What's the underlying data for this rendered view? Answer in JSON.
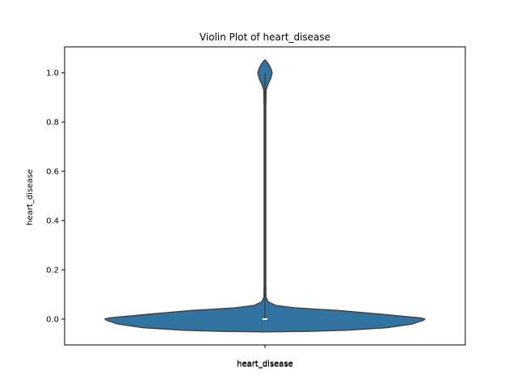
{
  "chart_data": {
    "type": "violin",
    "title": "Violin Plot of heart_disease",
    "xlabel": "heart_disease",
    "ylabel": "heart_disease",
    "categories": [
      "heart_disease"
    ],
    "ylim": [
      -0.105,
      1.105
    ],
    "y_ticks": [
      0.0,
      0.2,
      0.4,
      0.6,
      0.8,
      1.0
    ],
    "y_tick_labels": [
      "0.0",
      "0.2",
      "0.4",
      "0.6",
      "0.8",
      "1.0"
    ],
    "grid": false,
    "legend": "none",
    "series": [
      {
        "category": "heart_disease",
        "color": "#3274a1",
        "outline_color": "#3f3f3f",
        "quartiles": {
          "q1": 0.0,
          "median": 0.0,
          "q3": 0.0
        },
        "whiskers": [
          0.0,
          1.0
        ],
        "density_profile": [
          {
            "y": -0.052,
            "half_width": 0.0
          },
          {
            "y": -0.05,
            "half_width": 0.27
          },
          {
            "y": -0.045,
            "half_width": 0.52
          },
          {
            "y": -0.035,
            "half_width": 0.76
          },
          {
            "y": -0.02,
            "half_width": 0.92
          },
          {
            "y": -0.005,
            "half_width": 0.99
          },
          {
            "y": 0.0,
            "half_width": 1.0
          },
          {
            "y": 0.005,
            "half_width": 0.97
          },
          {
            "y": 0.02,
            "half_width": 0.72
          },
          {
            "y": 0.035,
            "half_width": 0.46
          },
          {
            "y": 0.045,
            "half_width": 0.2
          },
          {
            "y": 0.055,
            "half_width": 0.07
          },
          {
            "y": 0.07,
            "half_width": 0.02
          },
          {
            "y": 0.09,
            "half_width": 0.006
          },
          {
            "y": 0.15,
            "half_width": 0.005
          },
          {
            "y": 0.5,
            "half_width": 0.005
          },
          {
            "y": 0.85,
            "half_width": 0.005
          },
          {
            "y": 0.93,
            "half_width": 0.007
          },
          {
            "y": 0.955,
            "half_width": 0.02
          },
          {
            "y": 0.975,
            "half_width": 0.035
          },
          {
            "y": 1.0,
            "half_width": 0.045
          },
          {
            "y": 1.02,
            "half_width": 0.035
          },
          {
            "y": 1.035,
            "half_width": 0.022
          },
          {
            "y": 1.047,
            "half_width": 0.008
          },
          {
            "y": 1.052,
            "half_width": 0.0
          }
        ]
      }
    ]
  }
}
